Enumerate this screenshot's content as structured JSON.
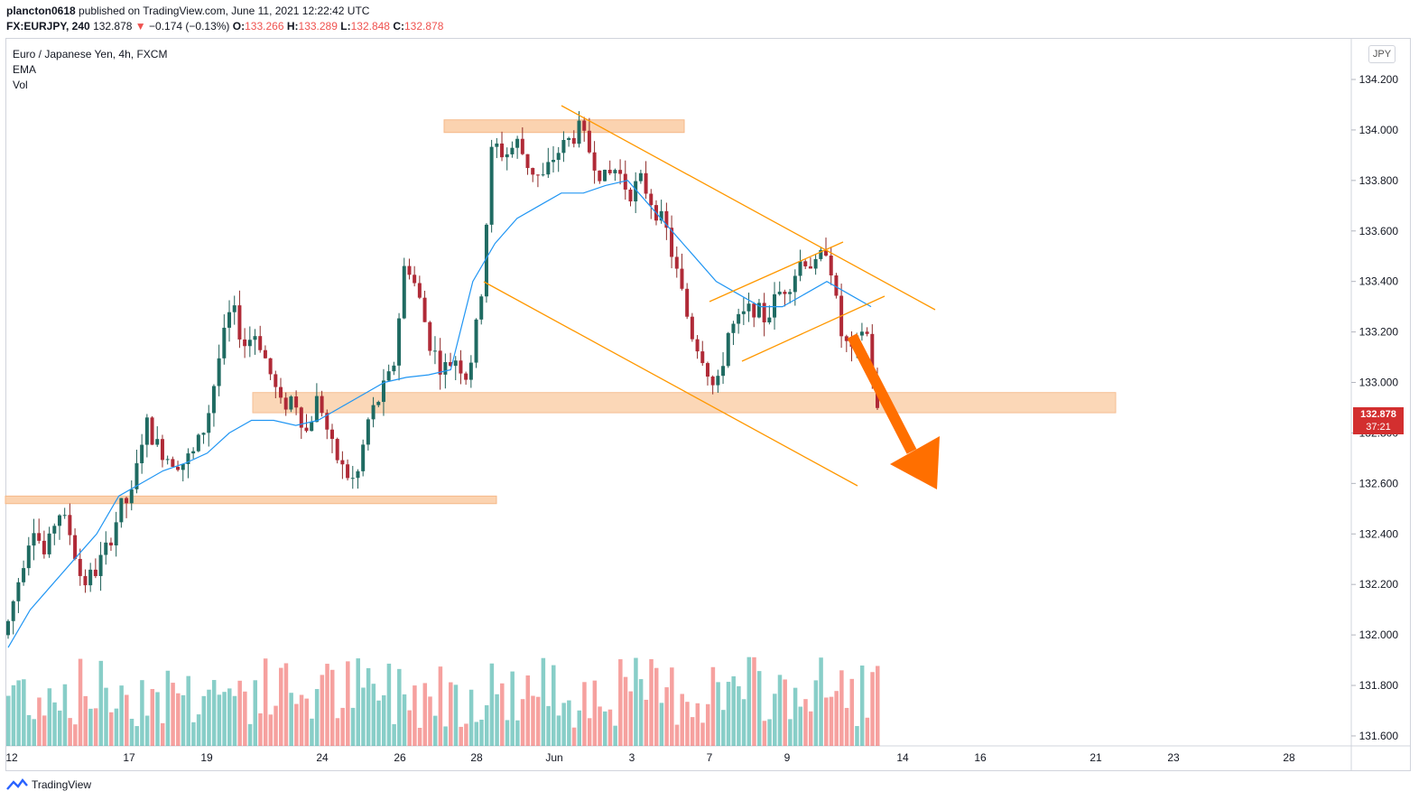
{
  "header": {
    "user": "plancton0618",
    "published": " published on TradingView.com, June 11, 2021 12:22:42 UTC",
    "symbol": "FX:EURJPY, 240",
    "last": "132.878",
    "change": "−0.174 (−0.13%)",
    "o_label": "O:",
    "o": "133.266",
    "h_label": "H:",
    "h": "133.289",
    "l_label": "L:",
    "l": "132.848",
    "c_label": "C:",
    "c": "132.878"
  },
  "legend": {
    "title": "Euro / Japanese Yen, 4h, FXCM",
    "ema": "EMA",
    "vol": "Vol"
  },
  "currency": "JPY",
  "current_price": {
    "price": "132.878",
    "countdown": "37:21"
  },
  "footer": {
    "brand": "TradingView"
  },
  "colors": {
    "up": "#26a69a",
    "down": "#ef5350",
    "ema": "#2196f3",
    "zone": "#fbd3b0",
    "trend": "#ff9800",
    "arrow": "#ff6f00"
  },
  "chart_data": {
    "type": "candlestick",
    "y_ticks": [
      "134.200",
      "134.000",
      "133.800",
      "133.600",
      "133.400",
      "133.200",
      "133.000",
      "132.800",
      "132.600",
      "132.400",
      "132.200",
      "132.000",
      "131.800",
      "131.600"
    ],
    "x_ticks": [
      "12",
      "17",
      "19",
      "24",
      "26",
      "28",
      "Jun",
      "3",
      "7",
      "9",
      "14",
      "16",
      "21",
      "23",
      "28"
    ],
    "ylim": [
      131.6,
      134.2
    ],
    "close_path": [
      132.05,
      132.25,
      132.45,
      132.3,
      132.5,
      132.4,
      132.2,
      132.25,
      132.35,
      132.5,
      132.55,
      132.85,
      132.75,
      132.7,
      132.68,
      132.72,
      132.85,
      133.1,
      133.3,
      133.15,
      133.2,
      133.05,
      132.9,
      132.95,
      132.8,
      132.95,
      132.75,
      132.65,
      132.6,
      132.85,
      132.95,
      133.05,
      133.5,
      133.35,
      133.15,
      133.05,
      133.1,
      133.02,
      133.3,
      133.95,
      133.9,
      133.95,
      133.85,
      133.8,
      133.9,
      133.95,
      134.0,
      133.9,
      133.8,
      133.85,
      133.75,
      133.8,
      133.7,
      133.6,
      133.4,
      133.2,
      133.1,
      132.95,
      133.2,
      133.25,
      133.3,
      133.25,
      133.35,
      133.4,
      133.5,
      133.45,
      133.55,
      133.2,
      133.1,
      133.25,
      132.88
    ],
    "ema_path": [
      131.95,
      132.1,
      132.2,
      132.3,
      132.4,
      132.55,
      132.6,
      132.65,
      132.68,
      132.72,
      132.8,
      132.85,
      132.85,
      132.83,
      132.85,
      132.9,
      132.95,
      133.0,
      133.02,
      133.03,
      133.05,
      133.4,
      133.55,
      133.65,
      133.7,
      133.75,
      133.75,
      133.78,
      133.8,
      133.7,
      133.6,
      133.5,
      133.4,
      133.35,
      133.3,
      133.3,
      133.35,
      133.4,
      133.35,
      133.3
    ],
    "zones": [
      {
        "from_x": "12",
        "price_low": 132.52,
        "price_high": 132.55
      },
      {
        "price_low": 132.88,
        "price_high": 132.96
      },
      {
        "price_low": 133.99,
        "price_high": 134.04
      }
    ]
  }
}
